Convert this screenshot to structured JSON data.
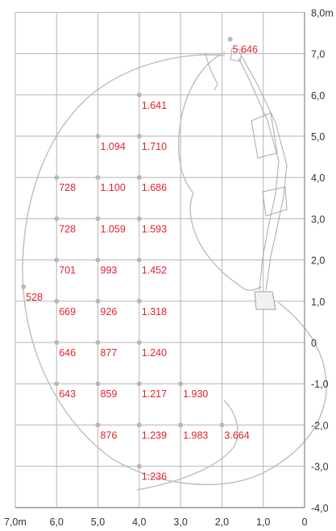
{
  "chart_data": {
    "type": "scatter",
    "title": "",
    "x_ticks": [
      "7,0m",
      "6,0",
      "5,0",
      "4,0",
      "3,0",
      "2,0",
      "1,0",
      "0"
    ],
    "y_ticks": [
      "8,0m",
      "7,0",
      "6,0",
      "5,0",
      "4,0",
      "3,0",
      "2,0",
      "1,0",
      "0",
      "-1,0",
      "-2,0",
      "-3,0",
      "-4,0"
    ],
    "x_range": [
      7.0,
      0.0
    ],
    "y_range": [
      -4.0,
      8.0
    ],
    "x_reversed": true,
    "grid": true,
    "points": [
      {
        "x": 1.8,
        "y": 7.35,
        "label": "5.646"
      },
      {
        "x": 4.0,
        "y": 6.0,
        "label": "1.641"
      },
      {
        "x": 5.0,
        "y": 5.0,
        "label": "1.094"
      },
      {
        "x": 4.0,
        "y": 5.0,
        "label": "1.710"
      },
      {
        "x": 6.0,
        "y": 4.0,
        "label": "728"
      },
      {
        "x": 5.0,
        "y": 4.0,
        "label": "1.100"
      },
      {
        "x": 4.0,
        "y": 4.0,
        "label": "1.686"
      },
      {
        "x": 6.0,
        "y": 3.0,
        "label": "728"
      },
      {
        "x": 5.0,
        "y": 3.0,
        "label": "1.059"
      },
      {
        "x": 4.0,
        "y": 3.0,
        "label": "1.593"
      },
      {
        "x": 6.0,
        "y": 2.0,
        "label": "701"
      },
      {
        "x": 5.0,
        "y": 2.0,
        "label": "993"
      },
      {
        "x": 4.0,
        "y": 2.0,
        "label": "1.452"
      },
      {
        "x": 6.8,
        "y": 1.35,
        "label": "528"
      },
      {
        "x": 6.0,
        "y": 1.0,
        "label": "669"
      },
      {
        "x": 5.0,
        "y": 1.0,
        "label": "926"
      },
      {
        "x": 4.0,
        "y": 1.0,
        "label": "1.318"
      },
      {
        "x": 6.0,
        "y": 0.0,
        "label": "646"
      },
      {
        "x": 5.0,
        "y": 0.0,
        "label": "877"
      },
      {
        "x": 4.0,
        "y": 0.0,
        "label": "1.240"
      },
      {
        "x": 6.0,
        "y": -1.0,
        "label": "643"
      },
      {
        "x": 5.0,
        "y": -1.0,
        "label": "859"
      },
      {
        "x": 4.0,
        "y": -1.0,
        "label": "1.217"
      },
      {
        "x": 3.0,
        "y": -1.0,
        "label": "1.930"
      },
      {
        "x": 5.0,
        "y": -2.0,
        "label": "876"
      },
      {
        "x": 4.0,
        "y": -2.0,
        "label": "1.239"
      },
      {
        "x": 3.0,
        "y": -2.0,
        "label": "1.983"
      },
      {
        "x": 2.0,
        "y": -2.0,
        "label": "3.664"
      },
      {
        "x": 4.0,
        "y": -3.0,
        "label": "1.236"
      }
    ],
    "colors": {
      "labels": "#e0222b",
      "grid": "#b5b5b5",
      "points": "#b8b8b8",
      "envelope": "#bdbdbd"
    }
  }
}
